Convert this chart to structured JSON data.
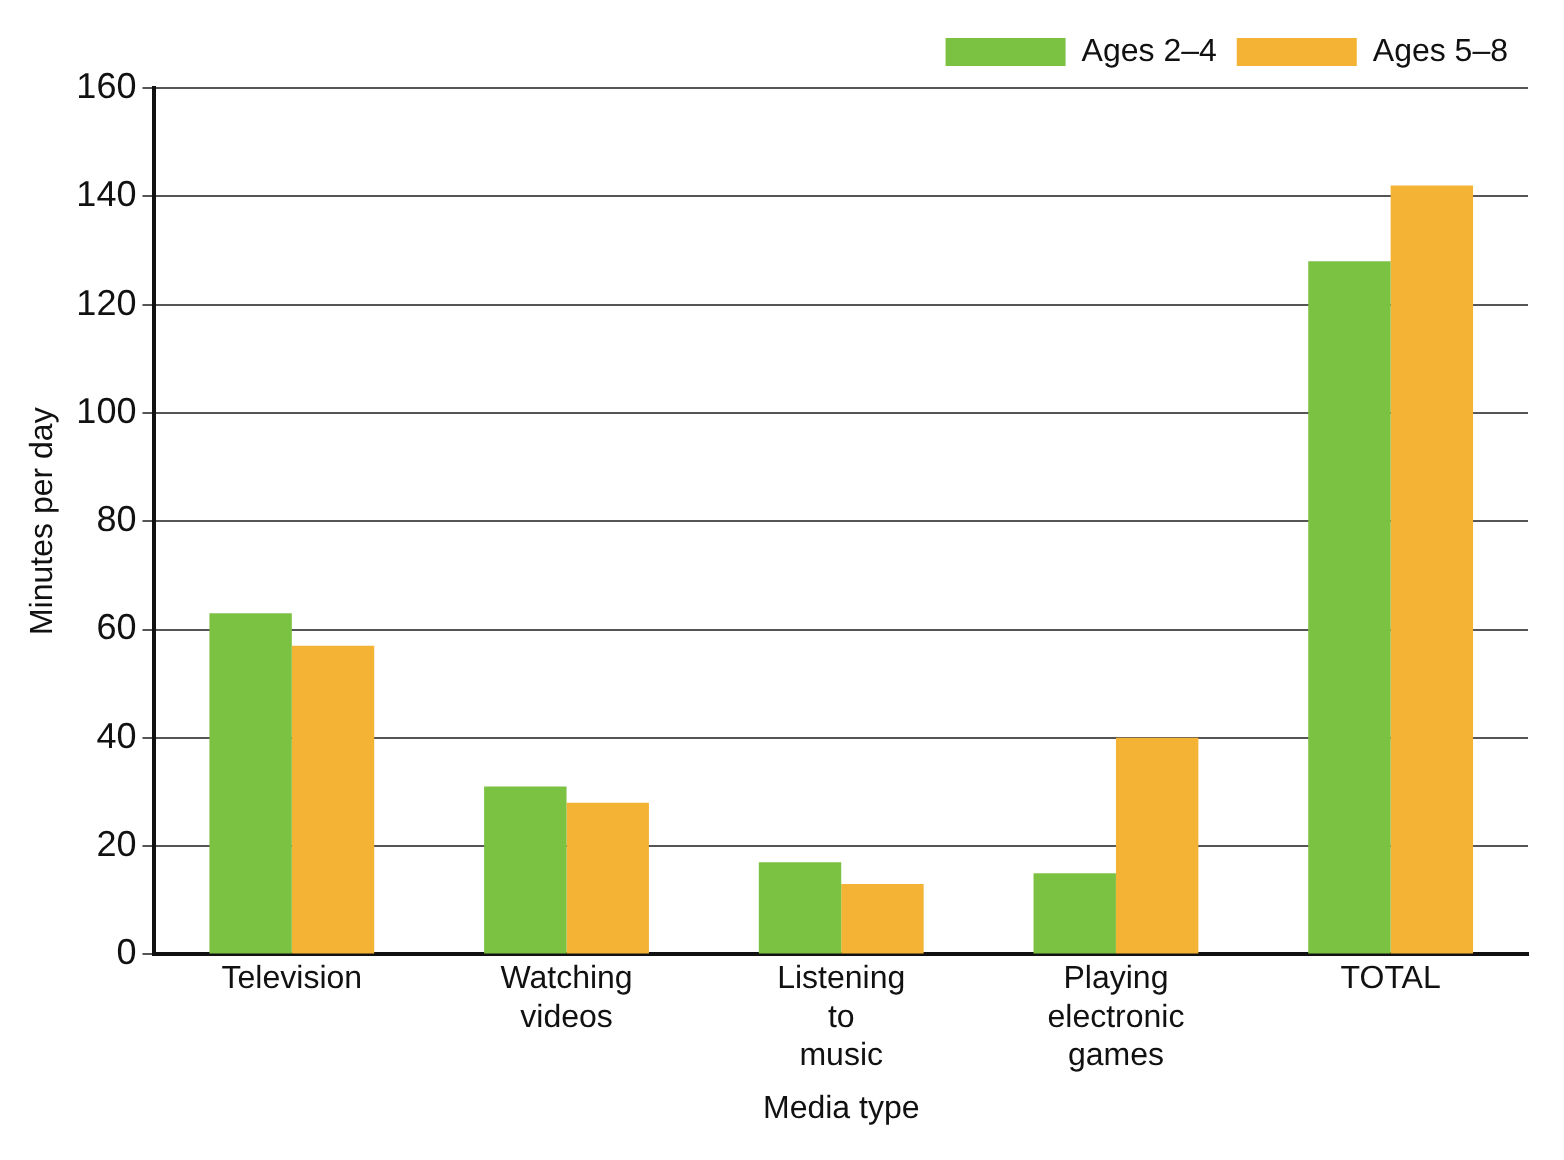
{
  "chart_data": {
    "type": "bar",
    "xlabel": "Media type",
    "ylabel": "Minutes per day",
    "categories": [
      "Television",
      "Watching videos",
      "Listening to music",
      "Playing electronic games",
      "TOTAL"
    ],
    "series": [
      {
        "name": "Ages 2–4",
        "color": "#7cc242",
        "values": [
          63,
          31,
          17,
          15,
          128
        ]
      },
      {
        "name": "Ages 5–8",
        "color": "#f5b335",
        "values": [
          57,
          28,
          13,
          40,
          142
        ]
      }
    ],
    "ylim": [
      0,
      160
    ],
    "yticks": [
      0,
      20,
      40,
      60,
      80,
      100,
      120,
      140,
      160
    ],
    "grid": "y",
    "legend": "top right"
  }
}
